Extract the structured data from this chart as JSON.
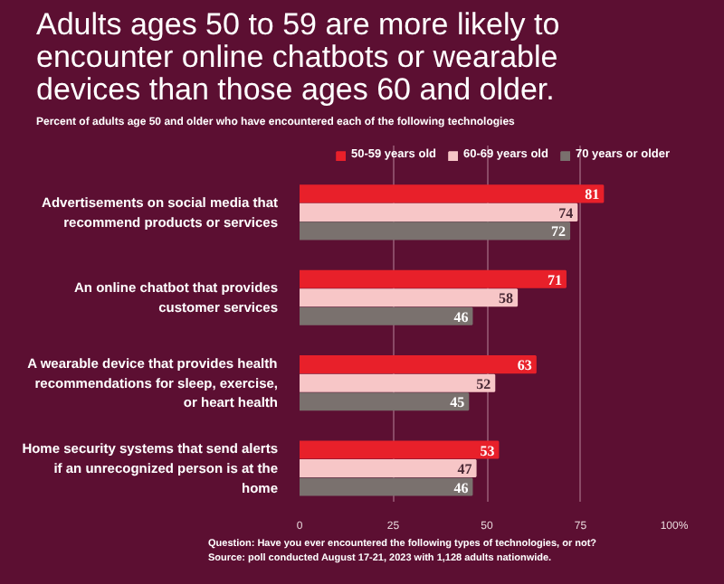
{
  "chart_data": {
    "type": "bar",
    "orientation": "horizontal",
    "title": "Adults ages 50 to 59 are more likely to encounter online chatbots or wearable devices than those ages 60 and older.",
    "subtitle": "Percent of adults age 50 and older who have encountered each of the following technologies",
    "categories": [
      "Advertisements on social media that recommend products or services",
      "An online chatbot that provides customer services",
      "A wearable device that provides health recommendations for sleep, exercise, or heart health",
      "Home security systems that send alerts if an unrecognized person is at the home"
    ],
    "series": [
      {
        "name": "50-59 years old",
        "color": "#e8202a",
        "values": [
          81,
          71,
          63,
          53
        ]
      },
      {
        "name": "60-69 years old",
        "color": "#f7c6c7",
        "values": [
          74,
          58,
          52,
          47
        ]
      },
      {
        "name": "70 years or older",
        "color": "#7a716e",
        "values": [
          72,
          46,
          45,
          46
        ]
      }
    ],
    "xlim": [
      0,
      100
    ],
    "xticks": [
      0,
      25,
      50,
      75,
      {
        "value": 100,
        "label": "100%"
      }
    ],
    "grid": "x",
    "legend": "top",
    "data_labels": true,
    "annotations": [
      "Question: Have you ever encountered the following types of technologies, or not?",
      "Source: poll conducted August 17-21, 2023 with 1,128 adults nationwide."
    ]
  }
}
